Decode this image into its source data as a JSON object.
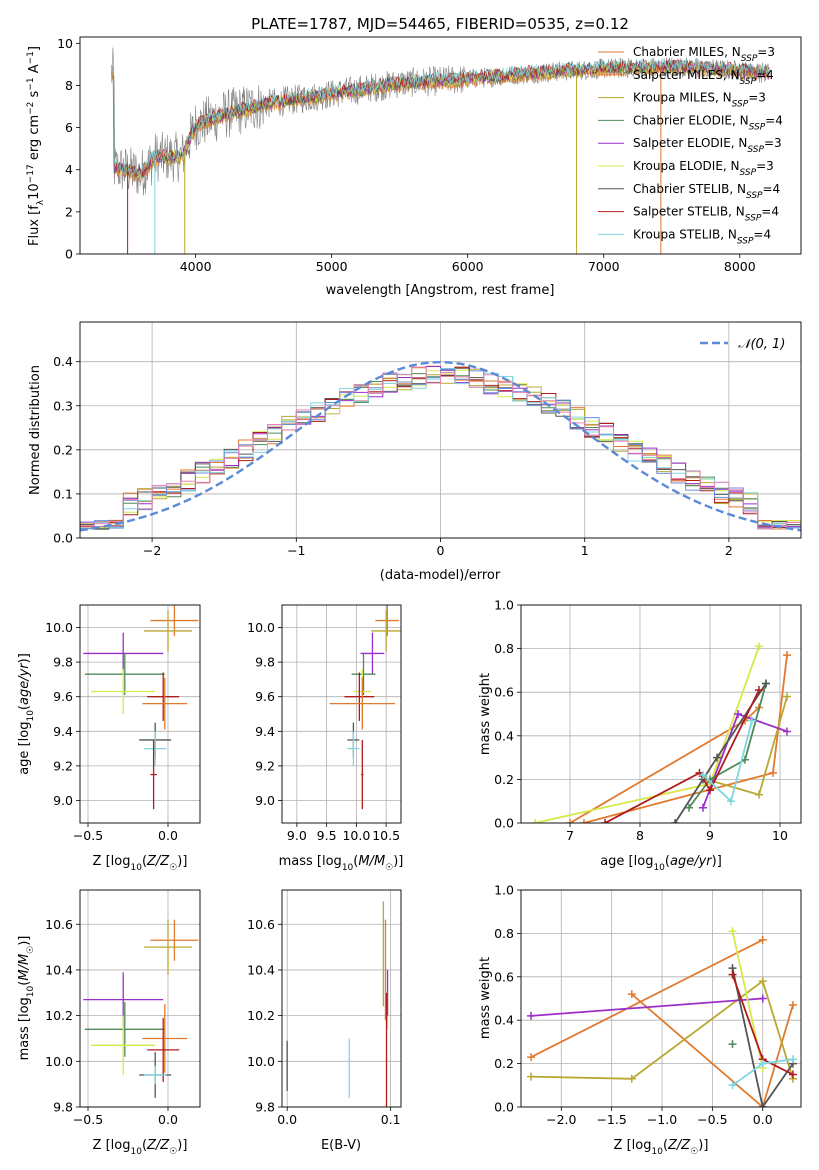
{
  "figure_title": "PLATE=1787, MJD=54465, FIBERID=0535, z=0.12",
  "colors": {
    "Chabrier MILES": "#e07a2f",
    "Salpeter MILES": "#e07a2f",
    "Kroupa MILES": "#b8a832",
    "Chabrier ELODIE": "#4f8a5a",
    "Salpeter ELODIE": "#9b30c8",
    "Kroupa ELODIE": "#d6e84a",
    "Chabrier STELIB": "#555555",
    "Salpeter STELIB": "#b01c1c",
    "Kroupa STELIB": "#7fd6e0",
    "chab_miles_scatter": "#6b8fdc",
    "salp_miles_scatter": "#e07a2f",
    "kroupa_miles_scatter": "#e882b4",
    "gaussian": "#5b8ad6"
  },
  "chart_data": [
    {
      "id": "spectrum",
      "type": "line",
      "title": "PLATE=1787, MJD=54465, FIBERID=0535, z=0.12",
      "xlabel": "wavelength [Angstrom, rest frame]",
      "ylabel": "Flux [f_λ10^-17 erg cm^-2 s^-1 A^-1]",
      "xlim": [
        3150,
        8450
      ],
      "ylim": [
        0,
        10.3
      ],
      "xticks": [
        4000,
        5000,
        6000,
        7000,
        8000
      ],
      "yticks": [
        0,
        2,
        4,
        6,
        8,
        10
      ],
      "legend_position": "top-right",
      "legend": [
        "Chabrier MILES, N_SSP=3",
        "Salpeter MILES, N_SSP=4",
        "Kroupa MILES, N_SSP=3",
        "Chabrier ELODIE, N_SSP=4",
        "Salpeter ELODIE, N_SSP=3",
        "Kroupa ELODIE, N_SSP=3",
        "Chabrier STELIB, N_SSP=4",
        "Salpeter STELIB, N_SSP=4",
        "Kroupa STELIB, N_SSP=4"
      ],
      "continuum_nodes": [
        [
          3400,
          4.1
        ],
        [
          3600,
          3.8
        ],
        [
          3700,
          4.6
        ],
        [
          3900,
          4.6
        ],
        [
          4000,
          6.1
        ],
        [
          4200,
          6.6
        ],
        [
          4500,
          7.1
        ],
        [
          5000,
          7.6
        ],
        [
          5500,
          8.1
        ],
        [
          6000,
          8.3
        ],
        [
          6500,
          8.6
        ],
        [
          7000,
          8.8
        ],
        [
          7500,
          8.9
        ],
        [
          8000,
          8.7
        ],
        [
          8200,
          8.6
        ]
      ]
    },
    {
      "id": "residuals",
      "type": "histogram",
      "xlabel": "(data-model)/error",
      "ylabel": "Normed distribution",
      "xlim": [
        -2.5,
        2.5
      ],
      "ylim": [
        0,
        0.49
      ],
      "xticks": [
        -2,
        -1,
        0,
        1,
        2
      ],
      "yticks": [
        0.0,
        0.1,
        0.2,
        0.3,
        0.4
      ],
      "grid": true,
      "legend_position": "top-right",
      "legend": [
        "𝒩(0, 1)"
      ],
      "bin_width": 0.1
    },
    {
      "id": "age_vs_Z",
      "type": "errorbar",
      "xlabel": "Z [log10(Z/Z☉)]",
      "ylabel": "age  [log10(age/yr)]",
      "xlim": [
        -0.55,
        0.2
      ],
      "ylim": [
        8.87,
        10.13
      ],
      "xticks": [
        -0.5,
        0.0
      ],
      "yticks": [
        9.0,
        9.2,
        9.4,
        9.6,
        9.8,
        10.0
      ],
      "grid": true,
      "points": [
        {
          "model": "Salpeter MILES",
          "x": 0.04,
          "xerr": 0.15,
          "y": 10.04,
          "yerr": 0.09
        },
        {
          "model": "Kroupa MILES",
          "x": 0.0,
          "xerr": 0.15,
          "y": 9.98,
          "yerr": 0.12
        },
        {
          "model": "Salpeter ELODIE",
          "x": -0.28,
          "xerr": 0.25,
          "y": 9.85,
          "yerr": 0.12
        },
        {
          "model": "Chabrier ELODIE",
          "x": -0.27,
          "xerr": 0.25,
          "y": 9.73,
          "yerr": 0.12
        },
        {
          "model": "Kroupa ELODIE",
          "x": -0.28,
          "xerr": 0.2,
          "y": 9.63,
          "yerr": 0.13
        },
        {
          "model": "Salpeter STELIB",
          "x": -0.03,
          "xerr": 0.1,
          "y": 9.6,
          "yerr": 0.14
        },
        {
          "model": "Chabrier MILES",
          "x": -0.02,
          "xerr": 0.14,
          "y": 9.56,
          "yerr": 0.15
        },
        {
          "model": "Chabrier STELIB",
          "x": -0.08,
          "xerr": 0.1,
          "y": 9.35,
          "yerr": 0.1
        },
        {
          "model": "Kroupa STELIB",
          "x": -0.08,
          "xerr": 0.07,
          "y": 9.3,
          "yerr": 0.1
        },
        {
          "model": "Salpeter STELIB",
          "x": -0.09,
          "xerr": 0.02,
          "y": 9.15,
          "yerr": 0.2
        }
      ]
    },
    {
      "id": "age_vs_mass",
      "type": "errorbar",
      "xlabel": "mass [log10(M/M☉)]",
      "ylabel": "",
      "xlim": [
        8.75,
        10.75
      ],
      "ylim": [
        8.87,
        10.13
      ],
      "xticks": [
        9.0,
        9.5,
        10.0,
        10.5
      ],
      "yticks": [
        9.0,
        9.2,
        9.4,
        9.6,
        9.8,
        10.0
      ],
      "grid": true,
      "points": [
        {
          "model": "Salpeter MILES",
          "x": 10.52,
          "xerr": 0.2,
          "y": 10.04,
          "yerr": 0.09
        },
        {
          "model": "Kroupa MILES",
          "x": 10.5,
          "xerr": 0.25,
          "y": 9.98,
          "yerr": 0.12
        },
        {
          "model": "Salpeter ELODIE",
          "x": 10.27,
          "xerr": 0.2,
          "y": 9.85,
          "yerr": 0.12
        },
        {
          "model": "Chabrier ELODIE",
          "x": 10.12,
          "xerr": 0.2,
          "y": 9.73,
          "yerr": 0.12
        },
        {
          "model": "Kroupa ELODIE",
          "x": 10.1,
          "xerr": 0.15,
          "y": 9.63,
          "yerr": 0.13
        },
        {
          "model": "Salpeter STELIB",
          "x": 10.05,
          "xerr": 0.25,
          "y": 9.6,
          "yerr": 0.14
        },
        {
          "model": "Chabrier MILES",
          "x": 10.1,
          "xerr": 0.55,
          "y": 9.56,
          "yerr": 0.15
        },
        {
          "model": "Chabrier STELIB",
          "x": 9.95,
          "xerr": 0.1,
          "y": 9.35,
          "yerr": 0.1
        },
        {
          "model": "Kroupa STELIB",
          "x": 9.95,
          "xerr": 0.1,
          "y": 9.3,
          "yerr": 0.1
        },
        {
          "model": "Salpeter STELIB",
          "x": 10.1,
          "xerr": 0.02,
          "y": 9.15,
          "yerr": 0.2
        }
      ]
    },
    {
      "id": "mass_weight_vs_age",
      "type": "line",
      "xlabel": "age  [log10(age/yr)]",
      "ylabel": "mass weight",
      "xlim": [
        6.3,
        10.3
      ],
      "ylim": [
        0,
        1
      ],
      "xticks": [
        7,
        8,
        9,
        10
      ],
      "yticks": [
        0.0,
        0.2,
        0.4,
        0.6,
        0.8,
        1.0
      ],
      "grid": true,
      "series": [
        {
          "model": "Chabrier MILES",
          "x": [
            7.0,
            9.5,
            9.7
          ],
          "y": [
            0.0,
            0.47,
            0.53
          ]
        },
        {
          "model": "Salpeter MILES",
          "x": [
            7.2,
            9.9,
            10.1
          ],
          "y": [
            0.0,
            0.23,
            0.77
          ]
        },
        {
          "model": "Kroupa MILES",
          "x": [
            8.95,
            9.7,
            10.1
          ],
          "y": [
            0.2,
            0.13,
            0.58
          ]
        },
        {
          "model": "Kroupa ELODIE",
          "x": [
            6.5,
            9.0,
            9.7
          ],
          "y": [
            0.0,
            0.18,
            0.81
          ]
        },
        {
          "model": "Salpeter ELODIE",
          "x": [
            8.9,
            9.4,
            10.1
          ],
          "y": [
            0.07,
            0.5,
            0.42
          ]
        },
        {
          "model": "Chabrier ELODIE",
          "x": [
            8.7,
            9.0,
            9.5,
            9.8
          ],
          "y": [
            0.07,
            0.2,
            0.29,
            0.64
          ]
        },
        {
          "model": "Chabrier STELIB",
          "x": [
            8.5,
            8.9,
            9.1,
            9.8
          ],
          "y": [
            0.0,
            0.2,
            0.3,
            0.64
          ]
        },
        {
          "model": "Salpeter STELIB",
          "x": [
            7.5,
            8.85,
            9.0,
            9.7
          ],
          "y": [
            0.0,
            0.23,
            0.15,
            0.61
          ]
        },
        {
          "model": "Kroupa STELIB",
          "x": [
            8.9,
            9.3,
            9.6
          ],
          "y": [
            0.22,
            0.1,
            0.47
          ]
        }
      ]
    },
    {
      "id": "mass_vs_Z",
      "type": "errorbar",
      "xlabel": "Z [log10(Z/Z☉)]",
      "ylabel": "mass [log10(M/M☉)]",
      "xlim": [
        -0.55,
        0.2
      ],
      "ylim": [
        9.8,
        10.75
      ],
      "xticks": [
        -0.5,
        0.0
      ],
      "yticks": [
        9.8,
        10.0,
        10.2,
        10.4,
        10.6
      ],
      "grid": true,
      "points": [
        {
          "model": "Salpeter MILES",
          "x": 0.04,
          "xerr": 0.15,
          "y": 10.53,
          "yerr": 0.09
        },
        {
          "model": "Kroupa MILES",
          "x": 0.0,
          "xerr": 0.15,
          "y": 10.5,
          "yerr": 0.12
        },
        {
          "model": "Salpeter ELODIE",
          "x": -0.28,
          "xerr": 0.25,
          "y": 10.27,
          "yerr": 0.12
        },
        {
          "model": "Chabrier ELODIE",
          "x": -0.27,
          "xerr": 0.25,
          "y": 10.14,
          "yerr": 0.12
        },
        {
          "model": "Chabrier MILES",
          "x": -0.02,
          "xerr": 0.14,
          "y": 10.1,
          "yerr": 0.15
        },
        {
          "model": "Kroupa ELODIE",
          "x": -0.28,
          "xerr": 0.2,
          "y": 10.07,
          "yerr": 0.13
        },
        {
          "model": "Salpeter STELIB",
          "x": -0.03,
          "xerr": 0.1,
          "y": 10.05,
          "yerr": 0.14
        },
        {
          "model": "Chabrier STELIB",
          "x": -0.08,
          "xerr": 0.1,
          "y": 9.94,
          "yerr": 0.1
        },
        {
          "model": "Kroupa STELIB",
          "x": -0.08,
          "xerr": 0.07,
          "y": 9.94,
          "yerr": 0.04
        }
      ]
    },
    {
      "id": "mass_vs_EBV",
      "type": "errorbar",
      "xlabel": "E(B-V)",
      "ylabel": "",
      "xlim": [
        -0.005,
        0.11
      ],
      "ylim": [
        9.8,
        10.75
      ],
      "xticks": [
        0.0,
        0.1
      ],
      "yticks": [
        9.8,
        10.0,
        10.2,
        10.4,
        10.6
      ],
      "grid": true,
      "points": [
        {
          "model": "Chabrier STELIB",
          "x": 0.0,
          "y": 9.98,
          "yerr": 0.11
        },
        {
          "model": "Kroupa STELIB",
          "x": 0.06,
          "y": 9.97,
          "yerr": 0.13
        },
        {
          "model": "Kroupa MILES",
          "x": 0.093,
          "y": 10.47,
          "yerr": 0.23
        },
        {
          "model": "Salpeter MILES",
          "x": 0.095,
          "y": 10.4,
          "yerr": 0.22
        },
        {
          "model": "Kroupa ELODIE",
          "x": 0.097,
          "y": 10.22,
          "yerr": 0.08
        },
        {
          "model": "Salpeter ELODIE",
          "x": 0.097,
          "y": 10.3,
          "yerr": 0.1
        },
        {
          "model": "Salpeter STELIB",
          "x": 0.096,
          "y": 10.05,
          "yerr": 0.25
        }
      ]
    },
    {
      "id": "mass_weight_vs_Z",
      "type": "line",
      "xlabel": "Z [log10(Z/Z☉)]",
      "ylabel": "mass weight",
      "xlim": [
        -2.4,
        0.38
      ],
      "ylim": [
        0,
        1
      ],
      "xticks": [
        -2.0,
        -1.5,
        -1.0,
        -0.5,
        0.0
      ],
      "yticks": [
        0.0,
        0.2,
        0.4,
        0.6,
        0.8,
        1.0
      ],
      "grid": true,
      "series": [
        {
          "model": "Chabrier MILES",
          "x": [
            -1.3,
            0.0,
            0.3
          ],
          "y": [
            0.52,
            0.0,
            0.47
          ]
        },
        {
          "model": "Salpeter MILES",
          "x": [
            -2.3,
            0.0
          ],
          "y": [
            0.23,
            0.77
          ]
        },
        {
          "model": "Kroupa MILES",
          "x": [
            -2.3,
            -1.3,
            0.0,
            0.3
          ],
          "y": [
            0.14,
            0.13,
            0.58,
            0.13
          ]
        },
        {
          "model": "Salpeter ELODIE",
          "x": [
            -2.3,
            0.0
          ],
          "y": [
            0.42,
            0.5
          ]
        },
        {
          "model": "Kroupa ELODIE",
          "x": [
            -0.3,
            0.0
          ],
          "y": [
            0.81,
            0.18
          ]
        },
        {
          "model": "Chabrier STELIB",
          "x": [
            -0.3,
            0.0,
            0.3
          ],
          "y": [
            0.64,
            0.0,
            0.2
          ]
        },
        {
          "model": "Salpeter STELIB",
          "x": [
            -0.3,
            0.0,
            0.3
          ],
          "y": [
            0.61,
            0.22,
            0.15
          ]
        },
        {
          "model": "Kroupa STELIB",
          "x": [
            -0.3,
            0.0,
            0.3
          ],
          "y": [
            0.1,
            0.2,
            0.22
          ]
        },
        {
          "model": "Chabrier ELODIE",
          "x": [
            -0.3
          ],
          "y": [
            0.29
          ]
        }
      ]
    }
  ]
}
